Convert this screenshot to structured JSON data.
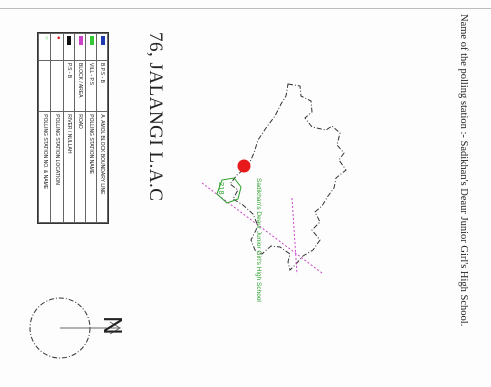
{
  "header": {
    "polling_station": "Name of the polling station :-    Sadikhan's Deaur Junior Girl's High School."
  },
  "map": {
    "title": "76, JALANGI L.A.C",
    "booth_number": "218",
    "school_label": "Sadikhan's Deaur Junior Girl's High School",
    "north_label": "N",
    "colors": {
      "boundary": "#333333",
      "road": "#cc44cc",
      "station_marker": "#e8191b",
      "school": "#2ca02c"
    }
  },
  "legend": {
    "rows": [
      {
        "color": "#1f3bb0",
        "swatch": "",
        "text_left": "B.P.S - B",
        "text_right": "A. AMOL BLOCK BOUNDARY LINE"
      },
      {
        "color": "#37c837",
        "swatch": "",
        "text_left": "VILL - P.S",
        "text_right": "POLLING STATION NAME"
      },
      {
        "color": "#cc44cc",
        "swatch": "",
        "text_left": "BLOCK / AREA",
        "text_right": "ROAD"
      },
      {
        "color": "#111111",
        "swatch": "",
        "text_left": "P.S - B",
        "text_right": "RIVER / NULLAH"
      },
      {
        "color": "#e8191b",
        "swatch": "●",
        "text_left": "",
        "text_right": "POLLING STATION LOCATION"
      },
      {
        "color": "#37c837",
        "swatch": "○",
        "text_left": "",
        "text_right": "POLLING STATION NO. & NAME"
      }
    ]
  }
}
